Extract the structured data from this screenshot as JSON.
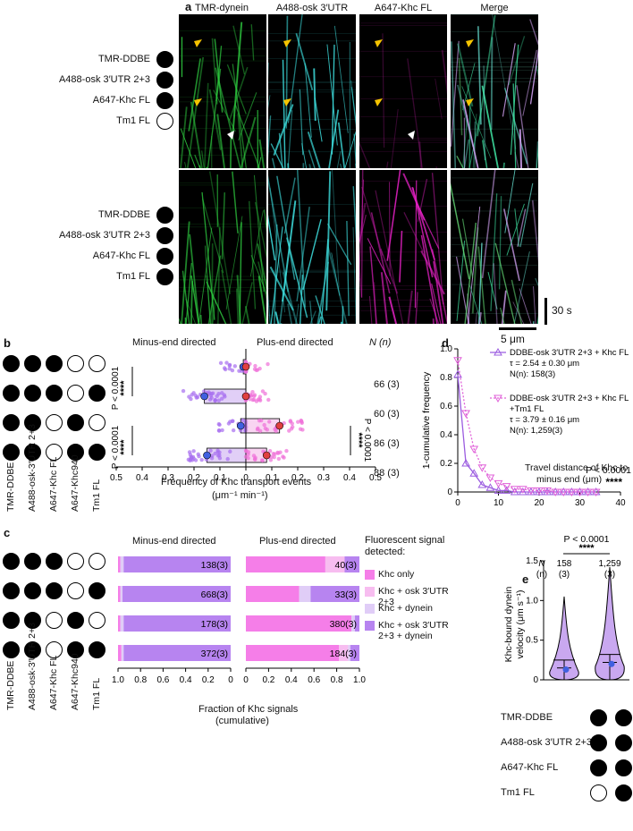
{
  "panel_a": {
    "label": "a",
    "headers": [
      "TMR-dynein",
      "A488-osk 3′UTR 2+3",
      "A647-Khc FL",
      "Merge"
    ],
    "rows": [
      {
        "labels": [
          "TMR-DDBE",
          "A488-osk 3′UTR 2+3",
          "A647-Khc FL",
          "Tm1 FL"
        ],
        "dots": [
          true,
          true,
          true,
          false
        ]
      },
      {
        "labels": [
          "TMR-DDBE",
          "A488-osk 3′UTR 2+3",
          "A647-Khc FL",
          "Tm1 FL"
        ],
        "dots": [
          true,
          true,
          true,
          true
        ]
      }
    ],
    "time_scale": "30 s",
    "space_scale": "5 μm",
    "colors": {
      "tmr": "#2ecc40",
      "a488": "#3ee0e0",
      "a647": "#e020c0",
      "arrow_yellow": "#f5c400",
      "arrow_white": "#ffffff"
    }
  },
  "panel_b": {
    "label": "b",
    "left_title": "Minus-end directed",
    "right_title": "Plus-end directed",
    "n_header": "N (n)",
    "x_title": "Frequency of Khc transport events",
    "x_units": "(μm⁻¹ min⁻¹)",
    "x_ticks": [
      "0.5",
      "0.4",
      "0.3",
      "0.2",
      "0.1",
      "0",
      "0.1",
      "0.2",
      "0.3",
      "0.4",
      "0.5"
    ],
    "n_values": [
      "66 (3)",
      "60 (3)",
      "86 (3)",
      "88 (3)"
    ],
    "p_left": "P < 0.0001",
    "p_right": "P < 0.0001",
    "stars": "****",
    "condition_labels": [
      "TMR-DDBE",
      "A488-osk-3′UTR 2+3",
      "A647-Khc FL",
      "A647-Khc940",
      "Tm1 FL"
    ],
    "dots": [
      [
        true,
        true,
        true,
        false,
        false
      ],
      [
        true,
        true,
        true,
        false,
        true
      ],
      [
        true,
        true,
        false,
        true,
        false
      ],
      [
        true,
        true,
        false,
        true,
        true
      ]
    ]
  },
  "panel_c": {
    "label": "c",
    "left_title": "Minus-end directed",
    "right_title": "Plus-end directed",
    "x_title": "Fraction of Khc signals",
    "x_units": "(cumulative)",
    "x_ticks_left": [
      "1.0",
      "0.8",
      "0.6",
      "0.4",
      "0.2",
      "0"
    ],
    "x_ticks_right": [
      "0",
      "0.2",
      "0.4",
      "0.6",
      "0.8",
      "1.0"
    ],
    "legend_title": "Fluorescent signal detected:",
    "legend": [
      {
        "label": "Khc only",
        "color": "#f57ee8"
      },
      {
        "label": "Khc + osk 3′UTR 2+3",
        "color": "#f7bdf0"
      },
      {
        "label": "Khc + dynein",
        "color": "#e0cdf7"
      },
      {
        "label": "Khc + osk 3′UTR 2+3 + dynein",
        "color": "#b784f0"
      }
    ],
    "counts_left": [
      "138(3)",
      "668(3)",
      "178(3)",
      "372(3)"
    ],
    "counts_right": [
      "40(3)",
      "33(3)",
      "380(3)",
      "184(3)"
    ],
    "condition_labels": [
      "TMR-DDBE",
      "A488-osk-3′UTR 2+3",
      "A647-Khc FL",
      "A647-Khc940",
      "Tm1 FL"
    ],
    "dots": [
      [
        true,
        true,
        true,
        false,
        false
      ],
      [
        true,
        true,
        true,
        false,
        true
      ],
      [
        true,
        true,
        false,
        true,
        false
      ],
      [
        true,
        true,
        false,
        true,
        true
      ]
    ]
  },
  "panel_d": {
    "label": "d",
    "y_title": "1-cumulative frequency",
    "x_title": "Travel distance of Khc to",
    "x_title2": "minus end (μm)",
    "legend1": [
      "DDBE-osk 3′UTR 2+3 + Khc FL",
      "τ = 2.54 ± 0.30 μm",
      "N(n): 158(3)"
    ],
    "legend2": [
      "DDBE-osk 3′UTR 2+3 + Khc FL",
      "+Tm1 FL",
      "τ = 3.79 ± 0.16 μm",
      "N(n): 1,259(3)"
    ],
    "p_text": "P < 0.0001",
    "stars": "****"
  },
  "panel_e": {
    "label": "e",
    "p_text": "P < 0.0001",
    "stars": "****",
    "n_header": "N",
    "n_sub": "(n)",
    "n_values": [
      "158",
      "1,259"
    ],
    "n_sub_values": [
      "(3)",
      "(3)"
    ],
    "y_title": "Khc-bound dynein",
    "y_title2": "velocity (μm s⁻¹)",
    "row_labels": [
      "TMR-DDBE",
      "A488-osk 3′UTR 2+3",
      "A647-Khc FL",
      "Tm1 FL"
    ],
    "dots": [
      [
        true,
        true
      ],
      [
        true,
        true
      ],
      [
        true,
        true
      ],
      [
        false,
        true
      ]
    ]
  },
  "chart_data": [
    {
      "type": "scatter",
      "panel": "b",
      "xlabel": "Frequency of Khc transport events (μm⁻¹ min⁻¹)",
      "xlim": [
        -0.5,
        0.5
      ],
      "series": [
        {
          "name": "Minus-end directed",
          "means": [
            -0.01,
            -0.16,
            -0.02,
            -0.15
          ]
        },
        {
          "name": "Plus-end directed",
          "means": [
            0.0,
            0.0,
            0.13,
            0.08
          ]
        }
      ],
      "n": [
        "66 (3)",
        "60 (3)",
        "86 (3)",
        "88 (3)"
      ]
    },
    {
      "type": "bar",
      "panel": "c",
      "categories": [
        "Khc only",
        "Khc + osk 3′UTR 2+3",
        "Khc + dynein",
        "Khc + osk 3′UTR 2+3 + dynein"
      ],
      "minus_end": [
        [
          0.02,
          0.0,
          0.03,
          0.95
        ],
        [
          0.02,
          0.0,
          0.02,
          0.96
        ],
        [
          0.02,
          0.0,
          0.03,
          0.95
        ],
        [
          0.03,
          0.0,
          0.02,
          0.95
        ]
      ],
      "plus_end": [
        [
          0.7,
          0.17,
          0.0,
          0.13
        ],
        [
          0.47,
          0.0,
          0.1,
          0.43
        ],
        [
          0.93,
          0.0,
          0.03,
          0.04
        ],
        [
          0.82,
          0.08,
          0.02,
          0.08
        ]
      ]
    },
    {
      "type": "line",
      "panel": "d",
      "xlim": [
        0,
        40
      ],
      "ylim": [
        0,
        1.0
      ],
      "series": [
        {
          "name": "DDBE-osk 3′UTR 2+3 + Khc FL",
          "x": [
            0,
            2,
            4,
            6,
            8,
            10,
            12,
            14,
            16,
            18,
            20,
            22,
            24,
            26,
            28,
            30,
            32,
            34
          ],
          "y": [
            0.82,
            0.2,
            0.13,
            0.05,
            0.03,
            0.01,
            0.01,
            0,
            0,
            0,
            0,
            0,
            0,
            0,
            0,
            0,
            0,
            0
          ]
        },
        {
          "name": "DDBE-osk 3′UTR 2+3 + Khc FL +Tm1 FL",
          "x": [
            0,
            2,
            4,
            6,
            8,
            10,
            12,
            14,
            16,
            18,
            20,
            22,
            24,
            26,
            28,
            30,
            32,
            34
          ],
          "y": [
            0.92,
            0.55,
            0.3,
            0.17,
            0.1,
            0.06,
            0.04,
            0.02,
            0.02,
            0.01,
            0.01,
            0.01,
            0,
            0,
            0,
            0,
            0,
            0
          ]
        }
      ]
    },
    {
      "type": "scatter",
      "panel": "e",
      "ylabel": "Khc-bound dynein velocity (μm s⁻¹)",
      "ylim": [
        0,
        1.5
      ],
      "categories": [
        "Tm1 FL absent",
        "Tm1 FL present"
      ],
      "medians": [
        0.15,
        0.22
      ],
      "n": [
        "158",
        "1,259"
      ]
    }
  ]
}
